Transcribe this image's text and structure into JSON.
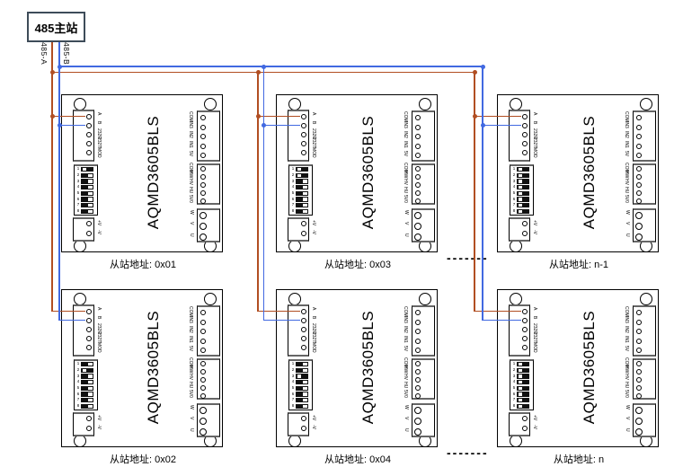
{
  "master": {
    "label": "485主站"
  },
  "bus": {
    "wire_a_label": "485-A",
    "wire_b_label": "485-B",
    "color_a": "#b14e22",
    "color_b": "#4169e1"
  },
  "board": {
    "model": "AQMD3605BLS",
    "comm_pins": [
      "A",
      "B",
      "232R",
      "232T",
      "MOD"
    ],
    "dip_numbers": [
      "1",
      "2",
      "3",
      "4",
      "5",
      "6",
      "7",
      "8"
    ],
    "power_pins": [
      "+V",
      "-V"
    ],
    "io_pins": [
      "COM",
      "IN3",
      "IN2",
      "IN1",
      "5V"
    ],
    "hall_pins": [
      "COM",
      "HW",
      "HV",
      "HU",
      "5V0"
    ],
    "motor_pins": [
      "W",
      "V",
      "U"
    ]
  },
  "boards": [
    {
      "address_label": "从站地址: 0x01",
      "dip": [
        1,
        0,
        0,
        0,
        0,
        0,
        0,
        0
      ]
    },
    {
      "address_label": "从站地址: 0x03",
      "dip": [
        1,
        1,
        0,
        0,
        0,
        0,
        0,
        0
      ]
    },
    {
      "address_label": "从站地址: n-1",
      "dip": [
        1,
        1,
        1,
        1,
        1,
        1,
        1,
        1
      ]
    },
    {
      "address_label": "从站地址: 0x02",
      "dip": [
        0,
        1,
        0,
        0,
        0,
        0,
        0,
        0
      ]
    },
    {
      "address_label": "从站地址: 0x04",
      "dip": [
        0,
        0,
        1,
        0,
        0,
        0,
        0,
        0
      ]
    },
    {
      "address_label": "从站地址: n",
      "dip": [
        1,
        1,
        1,
        1,
        1,
        1,
        1,
        1
      ]
    }
  ],
  "separator": "-------"
}
